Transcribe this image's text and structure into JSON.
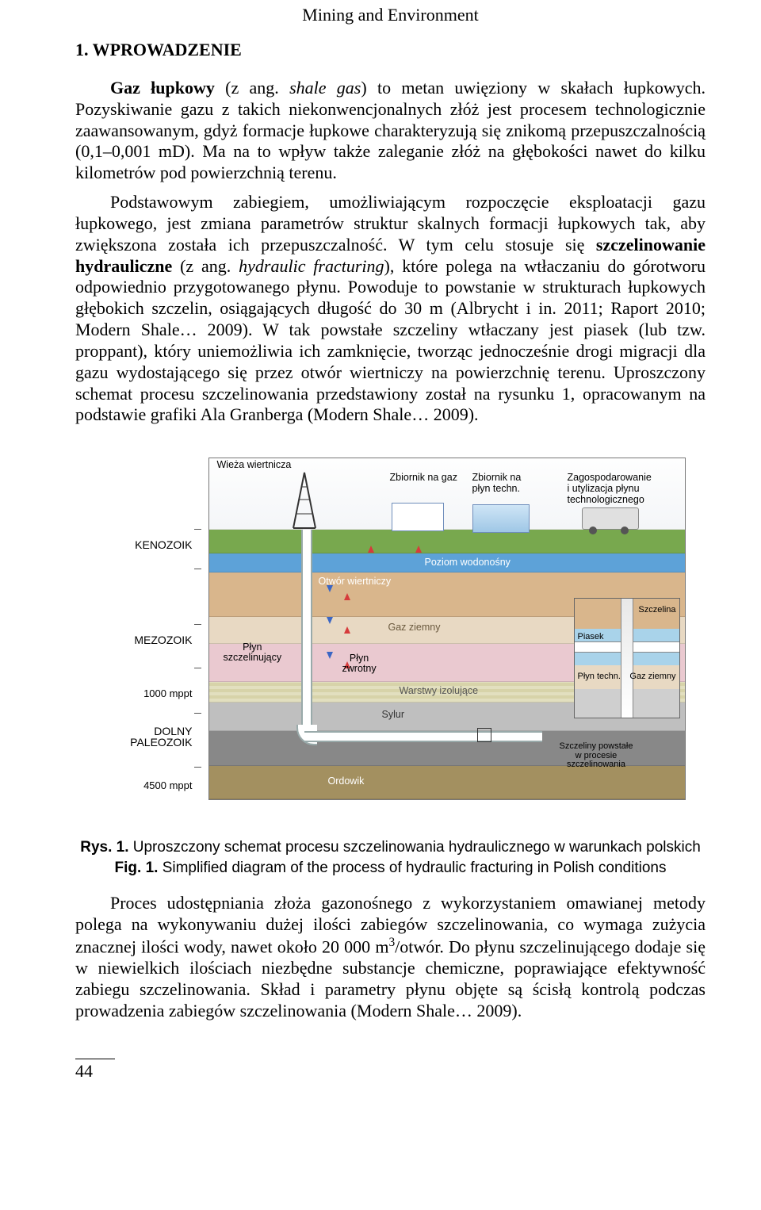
{
  "running_head": "Mining and Environment",
  "section_heading": "1. WPROWADZENIE",
  "para1_html": "<span class=\"indent\"></span><span class=\"bold\">Gaz łupkowy</span> (z ang. <span class=\"italic\">shale gas</span>) to metan uwięziony w skałach łupkowych. Pozyskiwanie gazu z takich niekonwencjonalnych złóż jest procesem technologicznie zaawansowanym, gdyż formacje łupkowe charakteryzują się znikomą przepuszczalnością (0,1–0,001 mD). Ma na to wpływ także zaleganie złóż na głębokości nawet do kilku kilometrów pod powierzchnią terenu.",
  "para2_html": "<span class=\"indent\"></span>Podstawowym zabiegiem, umożliwiającym rozpoczęcie eksploatacji gazu łupkowego, jest zmiana parametrów struktur skalnych formacji łupkowych tak, aby zwiększona została ich przepuszczalność. W tym celu stosuje się <span class=\"bold\">szczelinowanie hydrauliczne</span> (z ang. <span class=\"italic\">hydraulic fracturing</span>), które polega na wtłaczaniu do górotworu odpowiednio przygotowanego płynu. Powoduje to powstanie w strukturach łupkowych głębokich szczelin, osiągających długość do 30 m (Albrycht i in. 2011; Raport 2010; Modern Shale… 2009). W tak powstałe szczeliny wtłaczany jest piasek (lub tzw. proppant), który uniemożliwia ich zamknięcie, tworząc jednocześnie drogi migracji dla gazu wydostającego się przez otwór wiertniczy na powierzchnię terenu. Uproszczony schemat procesu szczelinowania przedstawiony został na rysunku 1, opracowanym na podstawie grafiki Ala Granberga (Modern Shale… 2009).",
  "caption1_html": "<span class=\"bold\">Rys. 1.</span> Uproszczony schemat procesu szczelinowania hydraulicznego w warunkach polskich",
  "caption2_html": "<span class=\"bold\">Fig. 1.</span> Simplified diagram of the process of hydraulic fracturing in Polish conditions",
  "para3_html": "<span class=\"indent\"></span>Proces udostępniania złoża gazonośnego z wykorzystaniem omawianej metody polega na wykonywaniu dużej ilości zabiegów szczelinowania, co wymaga zużycia znacznej ilości wody, nawet około 20 000 m<sup>3</sup>/otwór. Do płynu szczelinującego dodaje się w niewielkich ilościach niezbędne substancje chemiczne, poprawiające efektywność zabiegu szczelinowania. Skład i parametry płynu objęte są ścisłą kontrolą podczas prowadzenia zabiegów szczelinowania (Modern Shale… 2009).",
  "page_number": "44",
  "diagram": {
    "left_labels": {
      "kenozoik": "KENOZOIK",
      "mezozoik": "MEZOZOIK",
      "d1000": "1000 mppt",
      "paleo1": "DOLNY",
      "paleo2": "PALEOZOIK",
      "d4500": "4500 mppt"
    },
    "top_labels": {
      "rig": "Wieża wiertnicza",
      "gas_tank": "Zbiornik na gaz",
      "fluid_tank": "Zbiornik na\npłyn techn.",
      "truck": "Zagospodarowanie\ni utylizacja płynu technologicznego"
    },
    "in_labels": {
      "otwor": "Otwór wiertniczy",
      "poziom": "Poziom wodonośny",
      "gaz": "Gaz ziemny",
      "plyn_szcz": "Płyn\nszczelinujący",
      "plyn_zwr": "Płyn\nzwrotny",
      "warstwy": "Warstwy izolujące",
      "sylur": "Sylur",
      "ordowik": "Ordowik",
      "szczeliny": "Szczeliny powstałe\nw procesie\nszczelinowania"
    },
    "inset_labels": {
      "szczelina": "Szczelina",
      "piasek": "Piasek",
      "plyn_techn": "Płyn techn.",
      "gaz_ziemny": "Gaz ziemny"
    },
    "colors": {
      "soil": "#78a84e",
      "aquifer": "#5da2d8",
      "clay": "#d9b68c",
      "gas_bearing": "#e8d9c3",
      "mezo": "#eac9d0",
      "isolating": "#e2dfbf",
      "silurian": "#bfbfbf",
      "shale": "#888888",
      "ordovician": "#a39060",
      "arrow_down": "#3b66c4",
      "arrow_up": "#d63b3b"
    }
  }
}
